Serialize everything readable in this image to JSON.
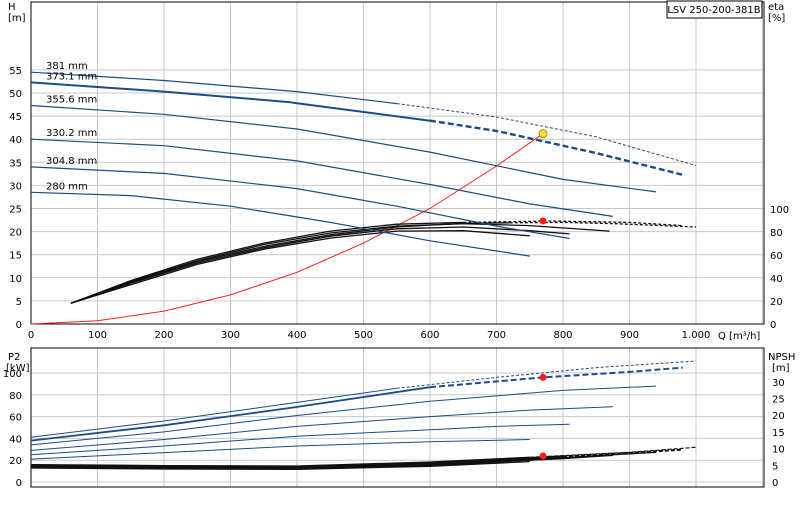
{
  "title": "LSV 250-200-381B",
  "chart_data": [
    {
      "type": "line",
      "name": "head-efficiency",
      "xlabel": "Q [m³/h]",
      "ylabel_left": [
        "H",
        "[m]"
      ],
      "ylabel_right": [
        "eta",
        "[%]"
      ],
      "x_ticks": [
        "0",
        "100",
        "200",
        "300",
        "400",
        "500",
        "600",
        "700",
        "800",
        "900",
        "1.000"
      ],
      "y_left_ticks": [
        "0",
        "5",
        "10",
        "15",
        "20",
        "25",
        "30",
        "35",
        "40",
        "45",
        "50",
        "55"
      ],
      "y_right_ticks": [
        "0",
        "20",
        "40",
        "60",
        "80",
        "100"
      ],
      "xlim": [
        0,
        1100
      ],
      "ylim_left": [
        0,
        60
      ],
      "ylim_right": [
        0,
        260
      ],
      "head_curves": [
        {
          "name": "381 mm",
          "solid": [
            [
              0,
              54.5
            ],
            [
              200,
              52.7
            ],
            [
              400,
              50.3
            ],
            [
              550,
              47.7
            ]
          ],
          "dashed": [
            [
              550,
              47.7
            ],
            [
              700,
              44.8
            ],
            [
              850,
              40.5
            ],
            [
              1000,
              34.3
            ]
          ]
        },
        {
          "name": "373.1 mm",
          "solid": [
            [
              0,
              52.3
            ],
            [
              200,
              50.3
            ],
            [
              390,
              48.0
            ],
            [
              400,
              47.8
            ],
            [
              600,
              44.0
            ]
          ],
          "dashed": [
            [
              600,
              44.0
            ],
            [
              700,
              41.8
            ],
            [
              850,
              37.0
            ],
            [
              980,
              32.3
            ]
          ]
        },
        {
          "name": "355.6 mm",
          "solid": [
            [
              0,
              47.3
            ],
            [
              200,
              45.4
            ],
            [
              400,
              42.2
            ],
            [
              600,
              37.2
            ],
            [
              800,
              31.3
            ],
            [
              940,
              28.6
            ]
          ],
          "dashed": []
        },
        {
          "name": "330.2 mm",
          "solid": [
            [
              0,
              40.0
            ],
            [
              200,
              38.6
            ],
            [
              400,
              35.3
            ],
            [
              600,
              30.2
            ],
            [
              750,
              26.0
            ],
            [
              875,
              23.3
            ]
          ],
          "dashed": []
        },
        {
          "name": "304.8 mm",
          "solid": [
            [
              0,
              34.0
            ],
            [
              200,
              32.6
            ],
            [
              400,
              29.3
            ],
            [
              550,
              25.5
            ],
            [
              700,
              21.2
            ],
            [
              810,
              18.5
            ]
          ],
          "dashed": []
        },
        {
          "name": "280 mm",
          "solid": [
            [
              0,
              28.5
            ],
            [
              150,
              27.8
            ],
            [
              300,
              25.5
            ],
            [
              450,
              22.0
            ],
            [
              600,
              18.0
            ],
            [
              750,
              14.7
            ]
          ],
          "dashed": []
        }
      ],
      "efficiency_curves": [
        {
          "solid": [
            [
              60,
              4.5
            ],
            [
              150,
              9.0
            ],
            [
              250,
              13.5
            ],
            [
              350,
              16.8
            ],
            [
              450,
              19.3
            ],
            [
              550,
              21.0
            ],
            [
              650,
              21.8
            ],
            [
              720,
              21.9
            ]
          ],
          "dashed": [
            [
              720,
              21.9
            ],
            [
              800,
              22.0
            ],
            [
              880,
              21.7
            ],
            [
              1000,
              21.0
            ]
          ]
        },
        {
          "solid": [
            [
              60,
              4.5
            ],
            [
              150,
              9.4
            ],
            [
              250,
              14.0
            ],
            [
              350,
              17.5
            ],
            [
              450,
              20.1
            ],
            [
              550,
              21.6
            ],
            [
              650,
              22.0
            ]
          ],
          "dashed": [
            [
              650,
              22.0
            ],
            [
              780,
              22.3
            ],
            [
              900,
              22.0
            ],
            [
              980,
              21.3
            ]
          ]
        },
        {
          "solid": [
            [
              60,
              4.5
            ],
            [
              150,
              9.2
            ],
            [
              250,
              13.7
            ],
            [
              350,
              17.2
            ],
            [
              450,
              19.7
            ],
            [
              550,
              21.2
            ],
            [
              650,
              21.7
            ],
            [
              750,
              21.3
            ],
            [
              870,
              20.1
            ]
          ],
          "dashed": []
        },
        {
          "solid": [
            [
              60,
              4.5
            ],
            [
              150,
              8.8
            ],
            [
              250,
              13.2
            ],
            [
              350,
              16.5
            ],
            [
              450,
              19.0
            ],
            [
              550,
              20.6
            ],
            [
              650,
              21.0
            ],
            [
              750,
              20.2
            ],
            [
              810,
              19.5
            ]
          ],
          "dashed": []
        },
        {
          "solid": [
            [
              60,
              4.5
            ],
            [
              150,
              8.5
            ],
            [
              250,
              12.9
            ],
            [
              350,
              16.2
            ],
            [
              450,
              18.6
            ],
            [
              550,
              20.1
            ],
            [
              650,
              20.2
            ],
            [
              750,
              19.1
            ]
          ],
          "dashed": []
        }
      ],
      "system_curve": [
        [
          0,
          0
        ],
        [
          100,
          0.7
        ],
        [
          200,
          2.8
        ],
        [
          300,
          6.3
        ],
        [
          400,
          11.2
        ],
        [
          500,
          17.5
        ],
        [
          600,
          25.0
        ],
        [
          700,
          34.2
        ],
        [
          770,
          41.2
        ]
      ],
      "operating_point": {
        "q": 770,
        "h": 41.2
      },
      "efficiency_point": {
        "q": 770,
        "eta": 22.3
      }
    },
    {
      "type": "line",
      "name": "power-npsh",
      "ylabel_left": [
        "P2",
        "[kW]"
      ],
      "ylabel_right": [
        "NPSH",
        "[m]"
      ],
      "y_left_ticks": [
        "0",
        "20",
        "40",
        "60",
        "80",
        "100"
      ],
      "y_right_ticks": [
        "0",
        "5",
        "10",
        "15",
        "20",
        "25",
        "30"
      ],
      "ylim_left": [
        0,
        123
      ],
      "ylim_right": [
        0,
        37
      ],
      "power_curves": [
        {
          "solid": [
            [
              0,
              41
            ],
            [
              200,
              56
            ],
            [
              400,
              73
            ],
            [
              550,
              86
            ]
          ],
          "dashed": [
            [
              550,
              86
            ],
            [
              700,
              96
            ],
            [
              850,
              105
            ],
            [
              1000,
              111
            ]
          ]
        },
        {
          "solid": [
            [
              0,
              38
            ],
            [
              200,
              52
            ],
            [
              390,
              68
            ],
            [
              600,
              87
            ]
          ],
          "dashed": [
            [
              600,
              87
            ],
            [
              770,
              96
            ],
            [
              900,
              101
            ],
            [
              980,
              105
            ]
          ]
        },
        {
          "solid": [
            [
              0,
              34
            ],
            [
              200,
              46
            ],
            [
              400,
              61
            ],
            [
              600,
              74
            ],
            [
              800,
              84
            ],
            [
              940,
              88
            ]
          ],
          "dashed": []
        },
        {
          "solid": [
            [
              0,
              29
            ],
            [
              200,
              39
            ],
            [
              400,
              51
            ],
            [
              600,
              60
            ],
            [
              750,
              66
            ],
            [
              875,
              69
            ]
          ],
          "dashed": []
        },
        {
          "solid": [
            [
              0,
              25
            ],
            [
              200,
              33
            ],
            [
              400,
              42
            ],
            [
              600,
              48
            ],
            [
              700,
              51
            ],
            [
              810,
              53
            ]
          ],
          "dashed": []
        },
        {
          "solid": [
            [
              0,
              21
            ],
            [
              200,
              27
            ],
            [
              400,
              33
            ],
            [
              600,
              37
            ],
            [
              750,
              39
            ]
          ],
          "dashed": []
        }
      ],
      "npsh_curves": [
        {
          "solid": [
            [
              0,
              5.2
            ],
            [
              200,
              4.9
            ],
            [
              400,
              4.8
            ],
            [
              600,
              6.0
            ],
            [
              750,
              7.4
            ]
          ],
          "dashed": [
            [
              750,
              7.4
            ],
            [
              900,
              8.9
            ],
            [
              1000,
              10.4
            ]
          ]
        },
        {
          "solid": [
            [
              0,
              5.0
            ],
            [
              200,
              4.7
            ],
            [
              400,
              4.6
            ],
            [
              600,
              5.7
            ],
            [
              800,
              7.7
            ]
          ],
          "dashed": [
            [
              800,
              7.7
            ],
            [
              900,
              8.7
            ],
            [
              980,
              9.7
            ]
          ]
        },
        {
          "solid": [
            [
              0,
              4.8
            ],
            [
              200,
              4.5
            ],
            [
              400,
              4.4
            ],
            [
              600,
              5.4
            ],
            [
              800,
              7.3
            ],
            [
              940,
              8.9
            ]
          ],
          "dashed": []
        },
        {
          "solid": [
            [
              0,
              4.6
            ],
            [
              200,
              4.3
            ],
            [
              400,
              4.2
            ],
            [
              600,
              5.1
            ],
            [
              800,
              7.0
            ],
            [
              875,
              8.0
            ]
          ],
          "dashed": []
        },
        {
          "solid": [
            [
              0,
              4.4
            ],
            [
              200,
              4.1
            ],
            [
              400,
              4.0
            ],
            [
              600,
              4.9
            ],
            [
              810,
              7.2
            ]
          ],
          "dashed": []
        },
        {
          "solid": [
            [
              0,
              4.2
            ],
            [
              200,
              3.9
            ],
            [
              400,
              3.8
            ],
            [
              600,
              4.7
            ],
            [
              750,
              6.1
            ]
          ],
          "dashed": []
        }
      ],
      "power_point": {
        "q": 770,
        "p2": 96
      },
      "npsh_point": {
        "q": 770,
        "npsh": 7.8
      }
    }
  ]
}
